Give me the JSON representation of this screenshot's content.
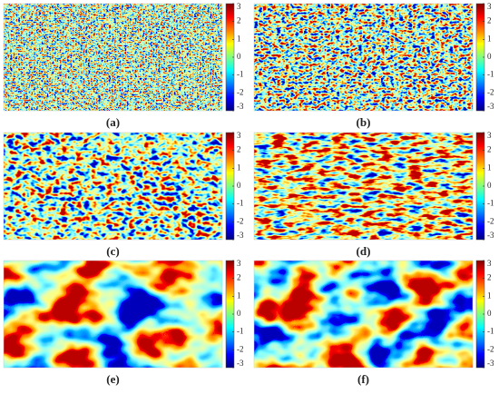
{
  "panels": [
    {
      "label": "(a)"
    },
    {
      "label": "(b)"
    },
    {
      "label": "(c)"
    },
    {
      "label": "(d)"
    },
    {
      "label": "(e)"
    },
    {
      "label": "(f)"
    }
  ],
  "colorbar": {
    "clim": [
      -3,
      3
    ],
    "ticks": [
      3,
      2,
      1,
      0,
      -1,
      -2,
      -3
    ]
  }
}
